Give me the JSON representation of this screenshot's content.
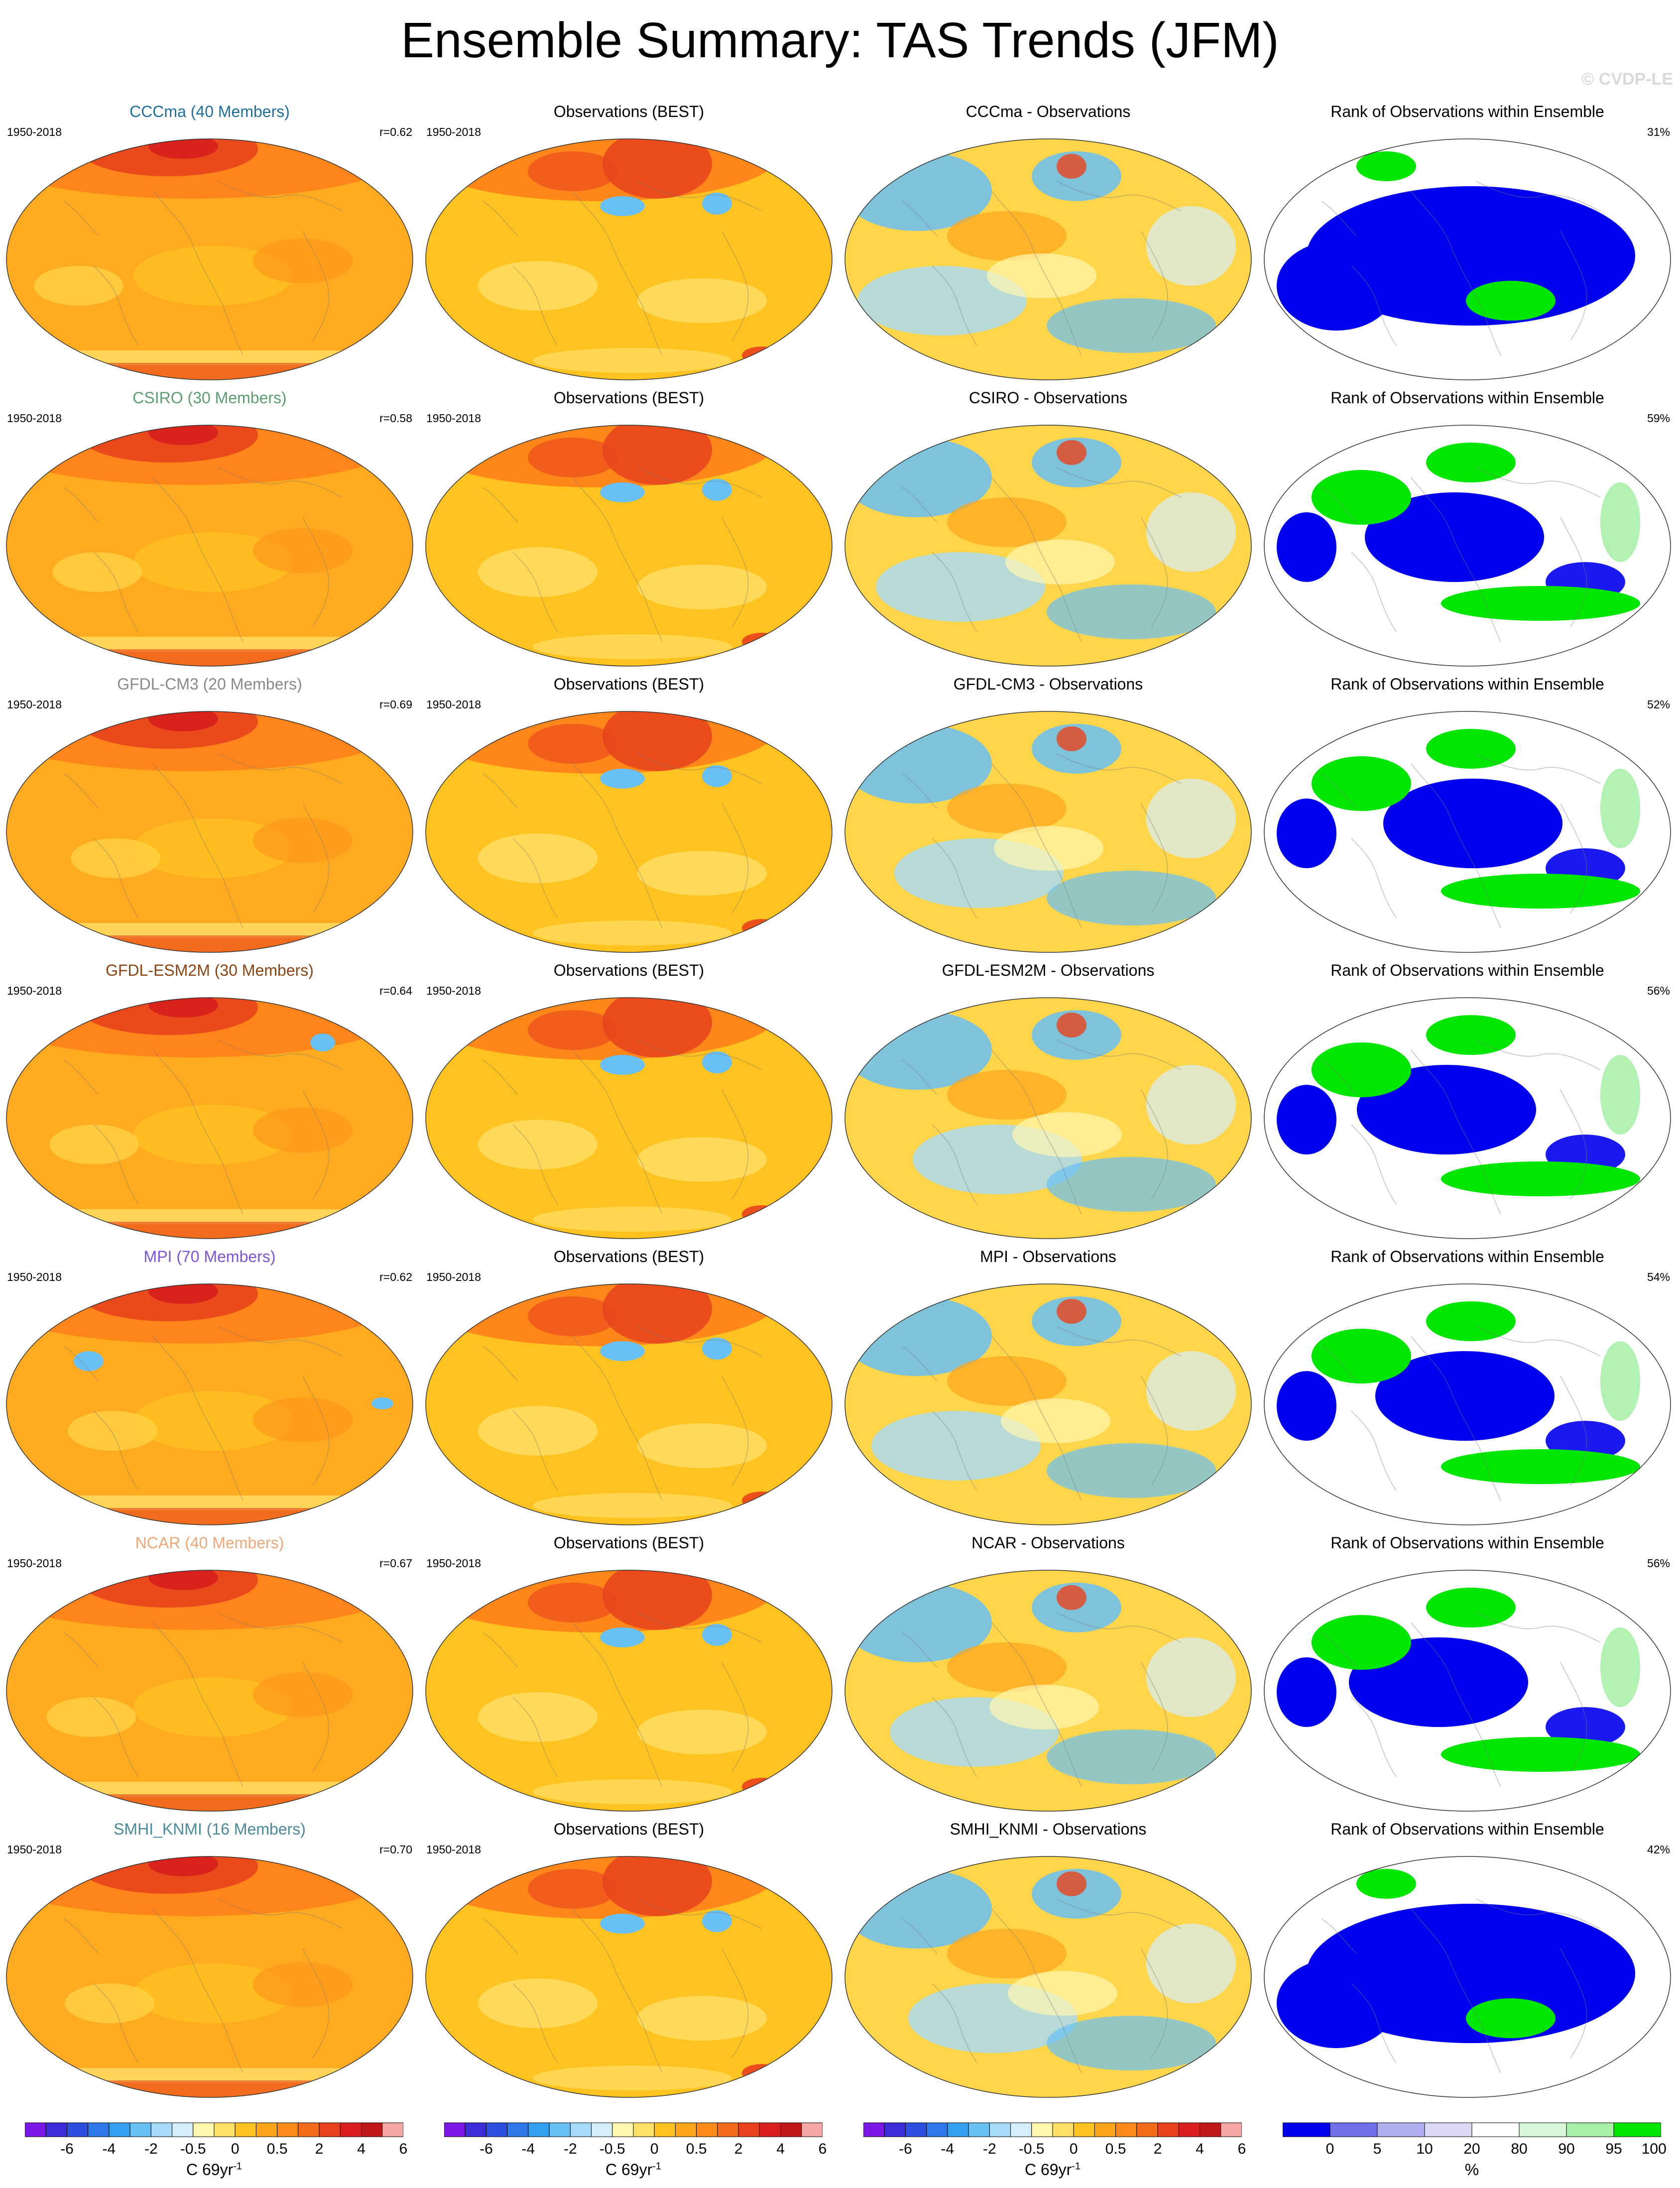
{
  "title": "Ensemble Summary: TAS Trends (JFM)",
  "copyright": "© CVDP-LE",
  "period": "1950-2018",
  "rows": [
    {
      "model_title": "CCCma (40 Members)",
      "model_color": "#1f6f9f",
      "r": "r=0.62",
      "diff_title": "CCCma - Observations",
      "rank_pct": "31%"
    },
    {
      "model_title": "CSIRO (30 Members)",
      "model_color": "#5d9d70",
      "r": "r=0.58",
      "diff_title": "CSIRO - Observations",
      "rank_pct": "59%"
    },
    {
      "model_title": "GFDL-CM3 (20 Members)",
      "model_color": "#8a8a8a",
      "r": "r=0.69",
      "diff_title": "GFDL-CM3 - Observations",
      "rank_pct": "52%"
    },
    {
      "model_title": "GFDL-ESM2M (30 Members)",
      "model_color": "#8b4513",
      "r": "r=0.64",
      "diff_title": "GFDL-ESM2M - Observations",
      "rank_pct": "56%"
    },
    {
      "model_title": "MPI (70 Members)",
      "model_color": "#7b56d6",
      "r": "r=0.62",
      "diff_title": "MPI - Observations",
      "rank_pct": "54%"
    },
    {
      "model_title": "NCAR (40 Members)",
      "model_color": "#f0a878",
      "r": "r=0.67",
      "diff_title": "NCAR - Observations",
      "rank_pct": "56%"
    },
    {
      "model_title": "SMHI_KNMI (16 Members)",
      "model_color": "#4a8a9a",
      "r": "r=0.70",
      "diff_title": "SMHI_KNMI - Observations",
      "rank_pct": "42%"
    }
  ],
  "obs_title": "Observations (BEST)",
  "rank_title": "Rank of Observations within Ensemble",
  "trend_colorbar": {
    "labels": [
      "-6",
      "-4",
      "-2",
      "-0.5",
      "0",
      "0.5",
      "2",
      "4",
      "6"
    ],
    "unit": "C 69yr",
    "unit_sup": "-1",
    "colors": [
      "#7a17e6",
      "#3b2bd9",
      "#2d4fe0",
      "#2f78ea",
      "#34a0f0",
      "#68c0f5",
      "#a5dbf8",
      "#d6eefb",
      "#fff7b0",
      "#ffe066",
      "#ffc21f",
      "#ffa51a",
      "#ff8a1a",
      "#f56b1c",
      "#e8421c",
      "#d81e1e",
      "#c01818",
      "#f7a6a6"
    ]
  },
  "rank_colorbar": {
    "labels": [
      "0",
      "5",
      "10",
      "20",
      "80",
      "90",
      "95",
      "100"
    ],
    "unit": "%",
    "colors": [
      "#0000ee",
      "#7070e8",
      "#b0b0f0",
      "#dadaf6",
      "#ffffff",
      "#d8f7d8",
      "#a8f0a8",
      "#00e600"
    ]
  }
}
